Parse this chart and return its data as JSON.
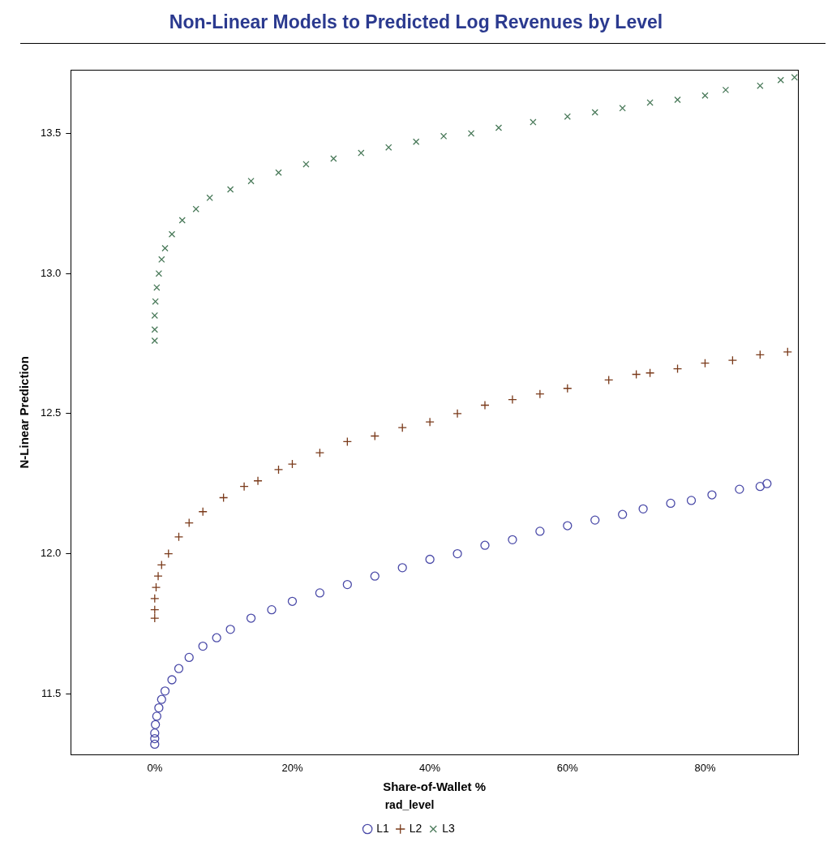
{
  "chart_data": {
    "type": "scatter",
    "title": "Non-Linear Models to Predicted Log Revenues by Level",
    "xlabel": "Share-of-Wallet %",
    "ylabel": "N-Linear Prediction",
    "legend_title": "rad_level",
    "legend": "bottom",
    "grid": false,
    "xlim": [
      -12.2,
      93.5
    ],
    "xticks": [
      {
        "value": 0,
        "label": "0%"
      },
      {
        "value": 20,
        "label": "20%"
      },
      {
        "value": 40,
        "label": "40%"
      },
      {
        "value": 60,
        "label": "60%"
      },
      {
        "value": 80,
        "label": "80%"
      }
    ],
    "ylim": [
      11.282,
      13.727
    ],
    "yticks": [
      11.5,
      {
        "value": 12,
        "label": "12.0"
      },
      12.5,
      {
        "value": 13,
        "label": "13.0"
      },
      13.5
    ],
    "series": [
      {
        "name": "L1",
        "color": "#4a4aa8",
        "marker": "circle",
        "x": [
          0,
          0,
          0,
          0.1,
          0.3,
          0.6,
          1,
          1.5,
          2.5,
          3.5,
          5,
          7,
          9,
          11,
          14,
          17,
          20,
          24,
          28,
          32,
          36,
          40,
          44,
          48,
          52,
          56,
          60,
          64,
          68,
          71,
          75,
          78,
          81,
          85,
          88,
          89
        ],
        "values": [
          11.32,
          11.34,
          11.36,
          11.39,
          11.42,
          11.45,
          11.48,
          11.51,
          11.55,
          11.59,
          11.63,
          11.67,
          11.7,
          11.73,
          11.77,
          11.8,
          11.83,
          11.86,
          11.89,
          11.92,
          11.95,
          11.98,
          12.0,
          12.03,
          12.05,
          12.08,
          12.1,
          12.12,
          12.14,
          12.16,
          12.18,
          12.19,
          12.21,
          12.23,
          12.24,
          12.25
        ]
      },
      {
        "name": "L2",
        "color": "#7a3a1a",
        "marker": "plus",
        "x": [
          0,
          0,
          0,
          0.2,
          0.5,
          1,
          2,
          3.5,
          5,
          7,
          10,
          13,
          15,
          18,
          20,
          24,
          28,
          32,
          36,
          40,
          44,
          48,
          52,
          56,
          60,
          66,
          70,
          72,
          76,
          80,
          84,
          88,
          92
        ],
        "values": [
          11.77,
          11.8,
          11.84,
          11.88,
          11.92,
          11.96,
          12.0,
          12.06,
          12.11,
          12.15,
          12.2,
          12.24,
          12.26,
          12.3,
          12.32,
          12.36,
          12.4,
          12.42,
          12.45,
          12.47,
          12.5,
          12.53,
          12.55,
          12.57,
          12.59,
          12.62,
          12.64,
          12.645,
          12.66,
          12.68,
          12.69,
          12.71,
          12.72
        ]
      },
      {
        "name": "L3",
        "color": "#4a7a5a",
        "marker": "cross",
        "x": [
          0,
          0,
          0,
          0.1,
          0.3,
          0.6,
          1,
          1.5,
          2.5,
          4,
          6,
          8,
          11,
          14,
          18,
          22,
          26,
          30,
          34,
          38,
          42,
          46,
          50,
          55,
          60,
          64,
          68,
          72,
          76,
          80,
          83,
          88,
          91,
          93
        ],
        "values": [
          12.76,
          12.8,
          12.85,
          12.9,
          12.95,
          13.0,
          13.05,
          13.09,
          13.14,
          13.19,
          13.23,
          13.27,
          13.3,
          13.33,
          13.36,
          13.39,
          13.41,
          13.43,
          13.45,
          13.47,
          13.49,
          13.5,
          13.52,
          13.54,
          13.56,
          13.575,
          13.59,
          13.61,
          13.62,
          13.635,
          13.655,
          13.67,
          13.69,
          13.7
        ]
      }
    ]
  }
}
